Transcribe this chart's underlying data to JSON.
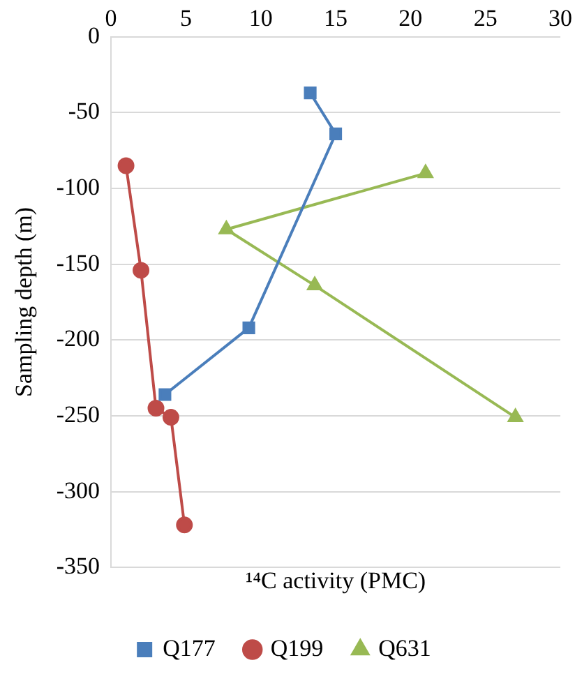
{
  "chart_data": {
    "type": "line",
    "xlabel": "¹⁴C activity (PMC)",
    "ylabel": "Sampling depth (m)",
    "xlim": [
      0,
      30
    ],
    "xticks": [
      0,
      5,
      10,
      15,
      20,
      25,
      30
    ],
    "ylim": [
      -350,
      0
    ],
    "yticks": [
      -350,
      -300,
      -250,
      -200,
      -150,
      -100,
      -50,
      0
    ],
    "grid": "y",
    "legend": "bottom",
    "series": [
      {
        "name": "Q177",
        "color": "#4a7ebb",
        "marker": "square",
        "x": [
          13.3,
          15.0,
          9.2,
          3.6
        ],
        "values": [
          -37,
          -64,
          -192,
          -236
        ]
      },
      {
        "name": "Q199",
        "color": "#be4b48",
        "marker": "circle",
        "x": [
          1.0,
          2.0,
          3.0,
          4.0,
          4.9
        ],
        "values": [
          -85,
          -154,
          -245,
          -251,
          -322
        ]
      },
      {
        "name": "Q631",
        "color": "#98b954",
        "marker": "triangle",
        "x": [
          21.0,
          7.7,
          13.6,
          27.0
        ],
        "values": [
          -90,
          -127,
          -164,
          -251
        ]
      }
    ]
  }
}
